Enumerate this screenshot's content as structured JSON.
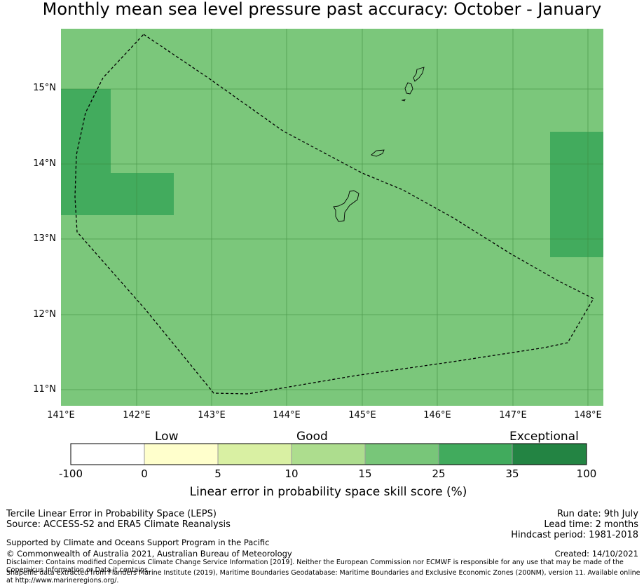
{
  "title": "Monthly mean sea level pressure past accuracy: October - January",
  "map": {
    "lat_labels": [
      "15°N",
      "14°N",
      "13°N",
      "12°N",
      "11°N"
    ],
    "lon_labels": [
      "141°E",
      "142°E",
      "143°E",
      "144°E",
      "145°E",
      "146°E",
      "147°E",
      "148°E"
    ],
    "colors": {
      "background": "#7bc77b",
      "cell_high": "#42ab5d",
      "boundary": "#000000",
      "gridline": "#3d8a3d"
    }
  },
  "colorbar": {
    "categories": {
      "low": "Low",
      "good": "Good",
      "exceptional": "Exceptional"
    },
    "ticks": [
      "-100",
      "0",
      "5",
      "10",
      "15",
      "25",
      "35",
      "100"
    ],
    "colors": [
      "#ffffff",
      "#ffffcc",
      "#d9f0a3",
      "#addd8e",
      "#78c679",
      "#41ab5d",
      "#238443"
    ],
    "title": "Linear error in probability space skill score (%)"
  },
  "footer": {
    "left_line1": "Tercile Linear Error in Probability Space (LEPS)",
    "left_line2": "Source: ACCESS-S2 and ERA5 Climate Reanalysis",
    "support": "Supported by Climate and Oceans Support Program in the Pacific",
    "copyright": "© Commonwealth of Australia 2021, Australian Bureau of Meteorology",
    "run_date": "Run date: 9th July",
    "lead_time": "Lead time: 2 months",
    "hindcast": "Hindcast period: 1981-2018",
    "created": "Created: 14/10/2021",
    "disclaimer": "Disclaimer: Contains modified Copernicus Climate Change Service Information [2019]. Neither the European Commission nor ECMWF is responsible for any use that may be made of the Copernicus Information or Data it contains.",
    "shapefile": "Shapefile data extracted from Flanders Marine Institute (2019), Maritime Boundaries Geodatabase: Maritime Boundaries and Exclusive Economic Zones (200NM), version 11. Available online at http://www.marineregions.org/."
  }
}
